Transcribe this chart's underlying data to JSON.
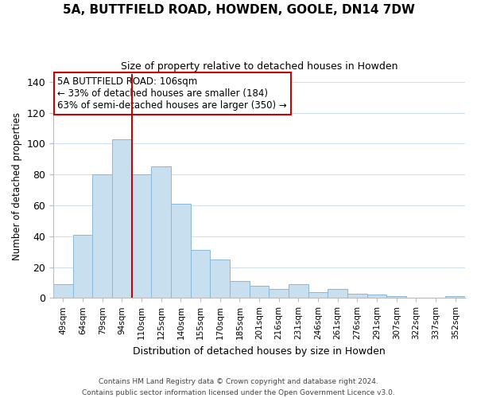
{
  "title": "5A, BUTTFIELD ROAD, HOWDEN, GOOLE, DN14 7DW",
  "subtitle": "Size of property relative to detached houses in Howden",
  "xlabel": "Distribution of detached houses by size in Howden",
  "ylabel": "Number of detached properties",
  "categories": [
    "49sqm",
    "64sqm",
    "79sqm",
    "94sqm",
    "110sqm",
    "125sqm",
    "140sqm",
    "155sqm",
    "170sqm",
    "185sqm",
    "201sqm",
    "216sqm",
    "231sqm",
    "246sqm",
    "261sqm",
    "276sqm",
    "291sqm",
    "307sqm",
    "322sqm",
    "337sqm",
    "352sqm"
  ],
  "values": [
    9,
    41,
    80,
    103,
    80,
    85,
    61,
    31,
    25,
    11,
    8,
    6,
    9,
    4,
    6,
    3,
    2,
    1,
    0,
    0,
    1
  ],
  "bar_color": "#c8dff0",
  "bar_edge_color": "#8ab8d8",
  "vline_x_pos": 3.5,
  "vline_color": "#cc0000",
  "ylim": [
    0,
    145
  ],
  "yticks": [
    0,
    20,
    40,
    60,
    80,
    100,
    120,
    140
  ],
  "annotation_title": "5A BUTTFIELD ROAD: 106sqm",
  "annotation_line1": "← 33% of detached houses are smaller (184)",
  "annotation_line2": "63% of semi-detached houses are larger (350) →",
  "annotation_box_color": "#ffffff",
  "annotation_box_edge": "#cc0000",
  "footer_line1": "Contains HM Land Registry data © Crown copyright and database right 2024.",
  "footer_line2": "Contains public sector information licensed under the Open Government Licence v3.0.",
  "background_color": "#ffffff",
  "grid_color": "#cddff0"
}
